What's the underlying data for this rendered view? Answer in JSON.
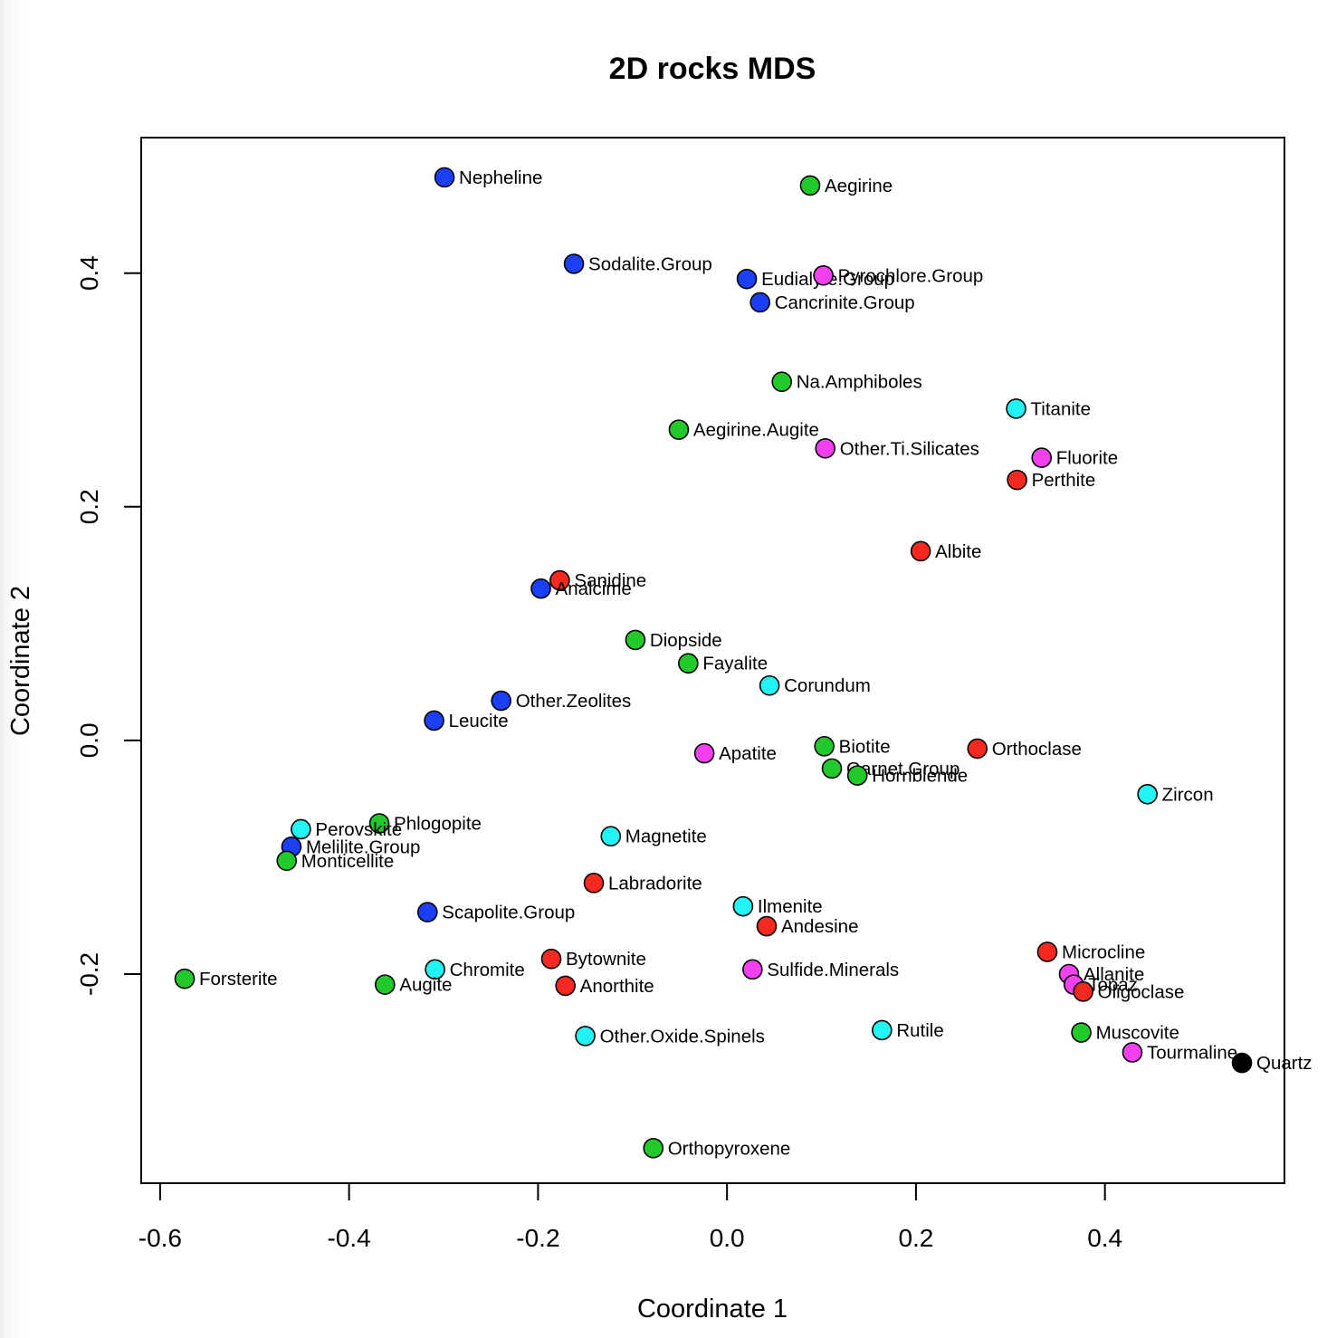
{
  "chart_data": {
    "type": "scatter",
    "title": "2D rocks MDS",
    "xlabel": "Coordinate 1",
    "ylabel": "Coordinate 2",
    "xlim": [
      -0.62,
      0.59
    ],
    "ylim": [
      -0.379,
      0.516
    ],
    "xticks": [
      -0.6,
      -0.4,
      -0.2,
      0.0,
      0.2,
      0.4
    ],
    "xtick_labels": [
      "-0.6",
      "-0.4",
      "-0.2",
      "0.0",
      "0.2",
      "0.4"
    ],
    "yticks": [
      -0.2,
      0.0,
      0.2,
      0.4
    ],
    "ytick_labels": [
      "-0.2",
      "0.0",
      "0.2",
      "0.4"
    ],
    "grid": false,
    "legend": "none",
    "colors": {
      "blue": "#1a3ff5",
      "green": "#22c92a",
      "red": "#f5291f",
      "cyan": "#22f3f5",
      "magenta": "#f23ff0",
      "black": "#000000"
    },
    "points": [
      {
        "label": "Nepheline",
        "x": -0.299,
        "y": 0.482,
        "color": "blue"
      },
      {
        "label": "Aegirine",
        "x": 0.088,
        "y": 0.475,
        "color": "green"
      },
      {
        "label": "Sodalite.Group",
        "x": -0.162,
        "y": 0.408,
        "color": "blue"
      },
      {
        "label": "Eudialyte.Group",
        "x": 0.021,
        "y": 0.395,
        "color": "blue"
      },
      {
        "label": "Pyrochlore.Group",
        "x": 0.102,
        "y": 0.398,
        "color": "magenta"
      },
      {
        "label": "Cancrinite.Group",
        "x": 0.035,
        "y": 0.375,
        "color": "blue"
      },
      {
        "label": "Na.Amphiboles",
        "x": 0.058,
        "y": 0.307,
        "color": "green"
      },
      {
        "label": "Titanite",
        "x": 0.306,
        "y": 0.284,
        "color": "cyan"
      },
      {
        "label": "Aegirine.Augite",
        "x": -0.051,
        "y": 0.266,
        "color": "green"
      },
      {
        "label": "Other.Ti.Silicates",
        "x": 0.104,
        "y": 0.25,
        "color": "magenta"
      },
      {
        "label": "Fluorite",
        "x": 0.333,
        "y": 0.242,
        "color": "magenta"
      },
      {
        "label": "Perthite",
        "x": 0.307,
        "y": 0.223,
        "color": "red"
      },
      {
        "label": "Albite",
        "x": 0.205,
        "y": 0.162,
        "color": "red"
      },
      {
        "label": "Sanidine",
        "x": -0.177,
        "y": 0.137,
        "color": "red"
      },
      {
        "label": "Analcime",
        "x": -0.197,
        "y": 0.13,
        "color": "blue"
      },
      {
        "label": "Diopside",
        "x": -0.097,
        "y": 0.086,
        "color": "green"
      },
      {
        "label": "Fayalite",
        "x": -0.041,
        "y": 0.066,
        "color": "green"
      },
      {
        "label": "Corundum",
        "x": 0.045,
        "y": 0.047,
        "color": "cyan"
      },
      {
        "label": "Other.Zeolites",
        "x": -0.239,
        "y": 0.034,
        "color": "blue"
      },
      {
        "label": "Leucite",
        "x": -0.31,
        "y": 0.017,
        "color": "blue"
      },
      {
        "label": "Biotite",
        "x": 0.103,
        "y": -0.005,
        "color": "green"
      },
      {
        "label": "Orthoclase",
        "x": 0.265,
        "y": -0.007,
        "color": "red"
      },
      {
        "label": "Apatite",
        "x": -0.024,
        "y": -0.011,
        "color": "magenta"
      },
      {
        "label": "Garnet.Group",
        "x": 0.111,
        "y": -0.024,
        "color": "green"
      },
      {
        "label": "Hornblende",
        "x": 0.138,
        "y": -0.03,
        "color": "green"
      },
      {
        "label": "Zircon",
        "x": 0.445,
        "y": -0.046,
        "color": "cyan"
      },
      {
        "label": "Phlogopite",
        "x": -0.368,
        "y": -0.071,
        "color": "green"
      },
      {
        "label": "Perovskite",
        "x": -0.451,
        "y": -0.076,
        "color": "cyan"
      },
      {
        "label": "Magnetite",
        "x": -0.123,
        "y": -0.082,
        "color": "cyan"
      },
      {
        "label": "Melilite.Group",
        "x": -0.461,
        "y": -0.091,
        "color": "blue"
      },
      {
        "label": "Monticellite",
        "x": -0.466,
        "y": -0.103,
        "color": "green"
      },
      {
        "label": "Labradorite",
        "x": -0.141,
        "y": -0.122,
        "color": "red"
      },
      {
        "label": "Scapolite.Group",
        "x": -0.317,
        "y": -0.147,
        "color": "blue"
      },
      {
        "label": "Ilmenite",
        "x": 0.017,
        "y": -0.142,
        "color": "cyan"
      },
      {
        "label": "Andesine",
        "x": 0.042,
        "y": -0.159,
        "color": "red"
      },
      {
        "label": "Microcline",
        "x": 0.339,
        "y": -0.181,
        "color": "red"
      },
      {
        "label": "Bytownite",
        "x": -0.186,
        "y": -0.187,
        "color": "red"
      },
      {
        "label": "Chromite",
        "x": -0.309,
        "y": -0.196,
        "color": "cyan"
      },
      {
        "label": "Sulfide.Minerals",
        "x": 0.027,
        "y": -0.196,
        "color": "magenta"
      },
      {
        "label": "Allanite",
        "x": 0.362,
        "y": -0.2,
        "color": "magenta"
      },
      {
        "label": "Forsterite",
        "x": -0.574,
        "y": -0.204,
        "color": "green"
      },
      {
        "label": "Augite",
        "x": -0.362,
        "y": -0.209,
        "color": "green"
      },
      {
        "label": "Anorthite",
        "x": -0.171,
        "y": -0.21,
        "color": "red"
      },
      {
        "label": "Topaz",
        "x": 0.367,
        "y": -0.209,
        "color": "magenta"
      },
      {
        "label": "Oligoclase",
        "x": 0.377,
        "y": -0.215,
        "color": "red"
      },
      {
        "label": "Rutile",
        "x": 0.164,
        "y": -0.248,
        "color": "cyan"
      },
      {
        "label": "Muscovite",
        "x": 0.375,
        "y": -0.25,
        "color": "green"
      },
      {
        "label": "Other.Oxide.Spinels",
        "x": -0.15,
        "y": -0.253,
        "color": "cyan"
      },
      {
        "label": "Tourmaline",
        "x": 0.429,
        "y": -0.267,
        "color": "magenta"
      },
      {
        "label": "Quartz",
        "x": 0.545,
        "y": -0.276,
        "color": "black"
      },
      {
        "label": "Orthopyroxene",
        "x": -0.078,
        "y": -0.349,
        "color": "green"
      }
    ]
  }
}
